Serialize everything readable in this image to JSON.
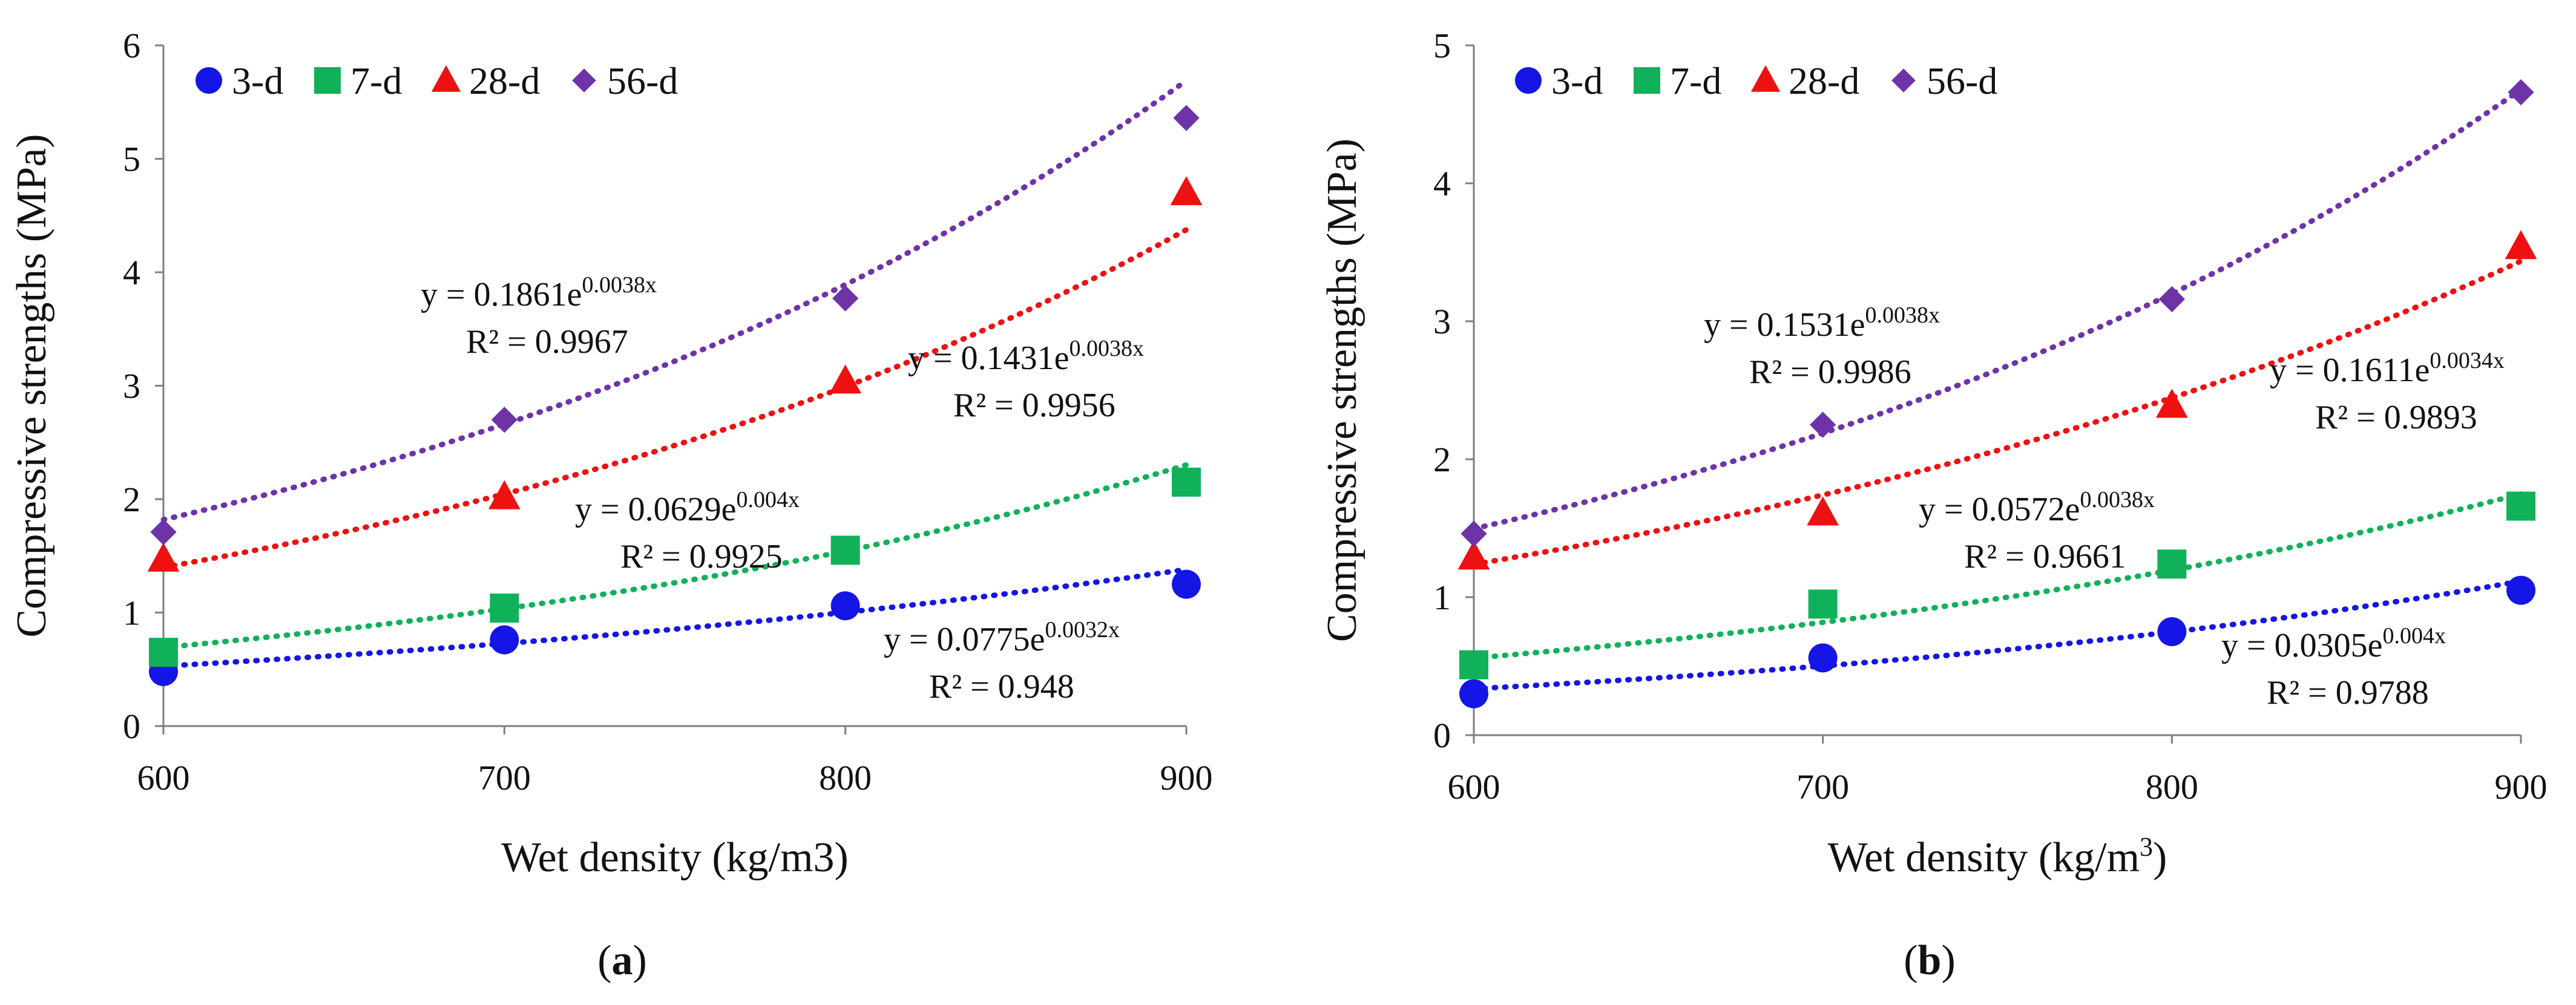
{
  "chart_data": [
    {
      "type": "scatter",
      "panel_label": "a",
      "xlabel": "Wet density (kg/m3)",
      "ylabel": "Compressive strengths (MPa)",
      "xlim": [
        600,
        900
      ],
      "ylim": [
        0,
        6
      ],
      "xticks": [
        600,
        700,
        800,
        900
      ],
      "yticks": [
        0,
        1,
        2,
        3,
        4,
        5,
        6
      ],
      "legend": "top-left",
      "x": [
        600,
        700,
        800,
        900
      ],
      "series": [
        {
          "name": "3-d",
          "marker": "circle",
          "color": "#1515e6",
          "values": [
            0.48,
            0.76,
            1.06,
            1.25
          ],
          "trend": {
            "a": 0.0775,
            "b": 0.0032
          },
          "equation": {
            "prefix": "y = 0.0775e",
            "exponent": "0.0032x",
            "r2": "R² = 0.948"
          }
        },
        {
          "name": "7-d",
          "marker": "square",
          "color": "#11b15a",
          "values": [
            0.65,
            1.04,
            1.55,
            2.15
          ],
          "trend": {
            "a": 0.0629,
            "b": 0.004
          },
          "equation": {
            "prefix": "y = 0.0629e",
            "exponent": "0.004x",
            "r2": "R² = 0.9925"
          }
        },
        {
          "name": "28-d",
          "marker": "triangle",
          "color": "#ee1111",
          "values": [
            1.47,
            2.02,
            3.04,
            4.7
          ],
          "trend": {
            "a": 0.1431,
            "b": 0.0038
          },
          "equation": {
            "prefix": "y = 0.1431e",
            "exponent": "0.0038x",
            "r2": "R² = 0.9956"
          }
        },
        {
          "name": "56-d",
          "marker": "diamond",
          "color": "#6f33a8",
          "values": [
            1.71,
            2.7,
            3.77,
            5.36
          ],
          "trend": {
            "a": 0.1861,
            "b": 0.0038
          },
          "equation": {
            "prefix": "y = 0.1861e",
            "exponent": "0.0038x",
            "r2": "R² = 0.9967"
          }
        }
      ]
    },
    {
      "type": "scatter",
      "panel_label": "b",
      "xlabel": "Wet density (kg/m",
      "xlabel_superscript": "3",
      "xlabel_suffix": ")",
      "ylabel": "Compressive strengths (MPa)",
      "xlim": [
        600,
        900
      ],
      "ylim": [
        0,
        5
      ],
      "xticks": [
        600,
        700,
        800,
        900
      ],
      "yticks": [
        0,
        1,
        2,
        3,
        4,
        5
      ],
      "legend": "top-left",
      "x": [
        600,
        700,
        800,
        900
      ],
      "series": [
        {
          "name": "3-d",
          "marker": "circle",
          "color": "#1515e6",
          "values": [
            0.3,
            0.56,
            0.75,
            1.05
          ],
          "trend": {
            "a": 0.0305,
            "b": 0.004
          },
          "equation": {
            "prefix": "y = 0.0305e",
            "exponent": "0.004x",
            "r2": "R² = 0.9788"
          }
        },
        {
          "name": "7-d",
          "marker": "square",
          "color": "#11b15a",
          "values": [
            0.51,
            0.95,
            1.24,
            1.66
          ],
          "trend": {
            "a": 0.0572,
            "b": 0.0038
          },
          "equation": {
            "prefix": "y = 0.0572e",
            "exponent": "0.0038x",
            "r2": "R² = 0.9661"
          }
        },
        {
          "name": "28-d",
          "marker": "triangle",
          "color": "#ee1111",
          "values": [
            1.29,
            1.61,
            2.39,
            3.54
          ],
          "trend": {
            "a": 0.1611,
            "b": 0.0034
          },
          "equation": {
            "prefix": "y = 0.1611e",
            "exponent": "0.0034x",
            "r2": "R² = 0.9893"
          }
        },
        {
          "name": "56-d",
          "marker": "diamond",
          "color": "#6f33a8",
          "values": [
            1.46,
            2.25,
            3.16,
            4.66
          ],
          "trend": {
            "a": 0.1531,
            "b": 0.0038
          },
          "equation": {
            "prefix": "y = 0.1531e",
            "exponent": "0.0038x",
            "r2": "R² = 0.9986"
          }
        }
      ]
    }
  ]
}
